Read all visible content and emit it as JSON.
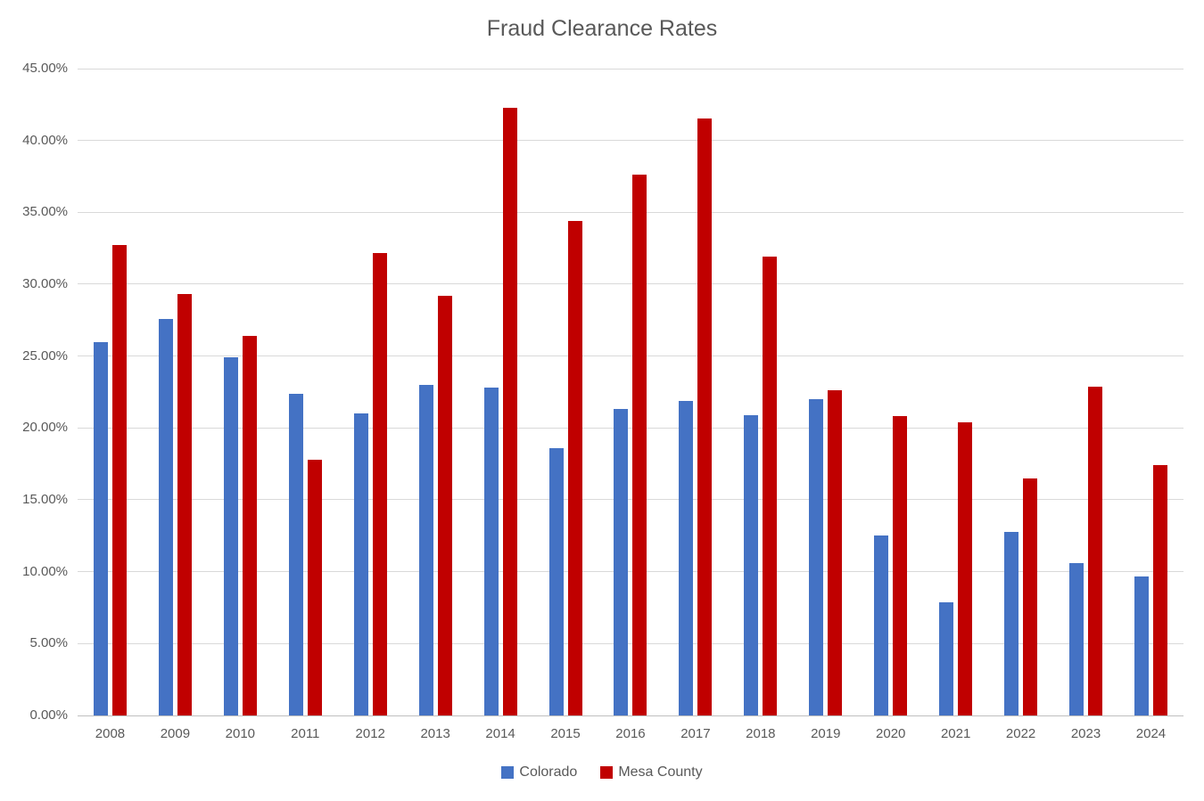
{
  "chart_data": {
    "type": "bar",
    "title": "Fraud Clearance Rates",
    "categories": [
      "2008",
      "2009",
      "2010",
      "2011",
      "2012",
      "2013",
      "2014",
      "2015",
      "2016",
      "2017",
      "2018",
      "2019",
      "2020",
      "2021",
      "2022",
      "2023",
      "2024"
    ],
    "series": [
      {
        "name": "Colorado",
        "color": "#4472C4",
        "values": [
          26.0,
          27.6,
          24.9,
          22.4,
          21.0,
          23.0,
          22.8,
          18.6,
          21.3,
          21.9,
          20.9,
          22.0,
          12.5,
          7.9,
          12.8,
          10.6,
          9.7
        ]
      },
      {
        "name": "Mesa County",
        "color": "#C00000",
        "values": [
          32.7,
          29.3,
          26.4,
          17.8,
          32.2,
          29.2,
          42.3,
          34.4,
          37.6,
          41.5,
          31.9,
          22.6,
          20.8,
          20.4,
          16.5,
          22.9,
          17.4
        ]
      }
    ],
    "xlabel": "",
    "ylabel": "",
    "ylim": [
      0,
      45
    ],
    "y_ticks": [
      "45.00%",
      "40.00%",
      "35.00%",
      "30.00%",
      "25.00%",
      "20.00%",
      "15.00%",
      "10.00%",
      "5.00%",
      "0.00%"
    ],
    "grid": true,
    "legend_position": "bottom",
    "text_color": "#595959",
    "gridline_color": "#D9D9D9",
    "axis_line_color": "#BFBFBF"
  }
}
